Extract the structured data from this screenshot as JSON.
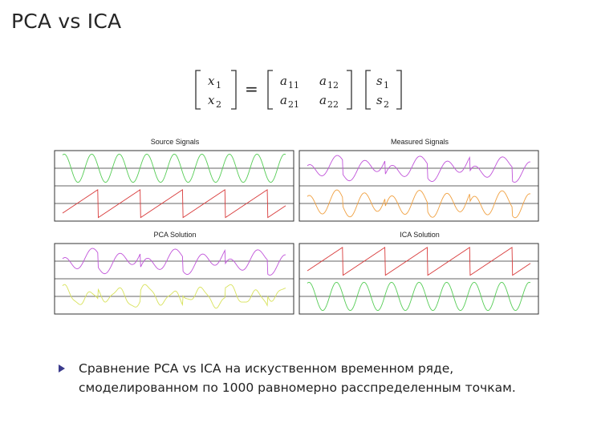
{
  "slide": {
    "title": "PCA vs ICA",
    "bullet_text": "Сравнение PCA vs ICA на искуственном временном ряде, смоделированном по 1000 равномерно расспределенным точкам.",
    "colors": {
      "title": "#262626",
      "bullet_marker": "#3a3a8c"
    }
  },
  "equation": {
    "lhs": [
      {
        "var": "x",
        "sub": "1"
      },
      {
        "var": "x",
        "sub": "2"
      }
    ],
    "operator": "=",
    "matrix": [
      [
        {
          "var": "a",
          "sub": "11"
        },
        {
          "var": "a",
          "sub": "12"
        }
      ],
      [
        {
          "var": "a",
          "sub": "21"
        },
        {
          "var": "a",
          "sub": "22"
        }
      ]
    ],
    "rhs": [
      {
        "var": "s",
        "sub": "1"
      },
      {
        "var": "s",
        "sub": "2"
      }
    ]
  },
  "figure": {
    "panels": [
      {
        "title": "Source Signals",
        "signals": [
          {
            "kind": "sine",
            "color": "#55cc55"
          },
          {
            "kind": "sawtooth",
            "color": "#d83a3a"
          }
        ]
      },
      {
        "title": "Measured Signals",
        "signals": [
          {
            "kind": "mix1",
            "color": "#c053d9"
          },
          {
            "kind": "mix2",
            "color": "#f0a040"
          }
        ]
      },
      {
        "title": "PCA Solution",
        "signals": [
          {
            "kind": "mix1",
            "color": "#c053d9"
          },
          {
            "kind": "mix3",
            "color": "#d8e25a"
          }
        ]
      },
      {
        "title": "ICA Solution",
        "signals": [
          {
            "kind": "sawtooth",
            "color": "#d83a3a"
          },
          {
            "kind": "sine",
            "color": "#55cc55"
          }
        ]
      }
    ]
  }
}
